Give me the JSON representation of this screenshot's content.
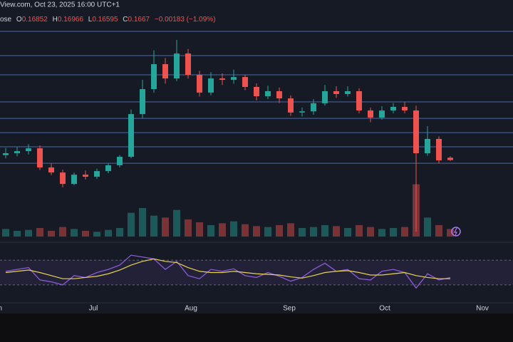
{
  "chart_data": {
    "type": "candlestick",
    "source": "View.com, Oct 23, 2025 16:00 UTC+1",
    "symbol": "ose",
    "ohlc_labels": [
      "O",
      "H",
      "L",
      "C"
    ],
    "change": "−0.00183 (−1.09%)",
    "open": [
      0.1705,
      0.172,
      0.1736,
      0.1758,
      0.1609,
      0.157,
      0.1481,
      0.1553,
      0.1537,
      0.1581,
      0.1626,
      0.1692,
      0.2024,
      0.2218,
      0.2412,
      0.2301,
      0.2495,
      0.2329,
      0.2191,
      0.2301,
      0.229,
      0.2312,
      0.2235,
      0.2163,
      0.2202,
      0.2146,
      0.2036,
      0.2045,
      0.2108,
      0.2202,
      0.218,
      0.2202,
      0.2052,
      0.1997,
      0.2052,
      0.208,
      0.2052,
      0.172,
      0.1831,
      0.16852
    ],
    "high": [
      0.176,
      0.1768,
      0.179,
      0.178,
      0.164,
      0.1592,
      0.157,
      0.1585,
      0.16,
      0.164,
      0.1705,
      0.206,
      0.229,
      0.252,
      0.246,
      0.26,
      0.253,
      0.236,
      0.235,
      0.234,
      0.237,
      0.233,
      0.2262,
      0.2245,
      0.223,
      0.217,
      0.2075,
      0.214,
      0.225,
      0.224,
      0.224,
      0.2225,
      0.2075,
      0.2085,
      0.211,
      0.2115,
      0.209,
      0.193,
      0.185,
      0.16966
    ],
    "low": [
      0.168,
      0.1695,
      0.171,
      0.159,
      0.155,
      0.1455,
      0.147,
      0.1515,
      0.152,
      0.1565,
      0.161,
      0.168,
      0.199,
      0.219,
      0.226,
      0.228,
      0.23,
      0.216,
      0.217,
      0.225,
      0.226,
      0.221,
      0.213,
      0.214,
      0.211,
      0.201,
      0.2005,
      0.202,
      0.209,
      0.215,
      0.216,
      0.203,
      0.196,
      0.198,
      0.203,
      0.203,
      0.111,
      0.17,
      0.164,
      0.16595
    ],
    "close": [
      0.172,
      0.1736,
      0.1758,
      0.1609,
      0.157,
      0.1481,
      0.1553,
      0.1537,
      0.1581,
      0.1626,
      0.1692,
      0.2024,
      0.2218,
      0.2412,
      0.2301,
      0.2495,
      0.2329,
      0.2191,
      0.2301,
      0.229,
      0.2312,
      0.2235,
      0.2163,
      0.2202,
      0.2146,
      0.2036,
      0.2045,
      0.2108,
      0.2202,
      0.218,
      0.2202,
      0.2052,
      0.1997,
      0.2052,
      0.208,
      0.2052,
      0.172,
      0.1831,
      0.1664,
      0.1667
    ],
    "volume": [
      8,
      6,
      7,
      9,
      6,
      10,
      8,
      6,
      5,
      7,
      9,
      25,
      30,
      22,
      20,
      28,
      18,
      15,
      12,
      14,
      16,
      13,
      11,
      10,
      12,
      14,
      9,
      10,
      12,
      11,
      9,
      12,
      10,
      8,
      9,
      10,
      55,
      20,
      12,
      8
    ],
    "volume_max": 60,
    "ylim": [
      0.1,
      0.28
    ],
    "levels": [
      0.2667,
      0.2479,
      0.2329,
      0.2119,
      0.1991,
      0.188,
      0.177,
      0.1642
    ],
    "up_color": "#26a69a",
    "down_color": "#ef5350",
    "level_color": "#4a6aa8",
    "rsi": [
      52,
      55,
      58,
      38,
      35,
      30,
      45,
      42,
      50,
      55,
      62,
      78,
      75,
      72,
      55,
      68,
      45,
      40,
      55,
      52,
      56,
      45,
      42,
      50,
      44,
      36,
      42,
      55,
      65,
      52,
      55,
      40,
      38,
      52,
      55,
      50,
      25,
      48,
      38,
      42
    ],
    "rsi_ma": [
      50,
      52,
      54,
      50,
      45,
      40,
      40,
      42,
      44,
      48,
      54,
      62,
      68,
      72,
      68,
      66,
      58,
      52,
      50,
      50,
      52,
      50,
      48,
      47,
      46,
      43,
      41,
      45,
      50,
      52,
      53,
      50,
      46,
      46,
      48,
      50,
      45,
      42,
      40,
      40
    ],
    "rsi_color": "#8a5cd6",
    "rsi_ma_color": "#e8d44d",
    "rsi_ylim": [
      0,
      100
    ],
    "rsi_band": [
      30,
      70
    ],
    "x_labels": [
      "n",
      "Jul",
      "Aug",
      "Sep",
      "Oct",
      "Nov"
    ]
  }
}
